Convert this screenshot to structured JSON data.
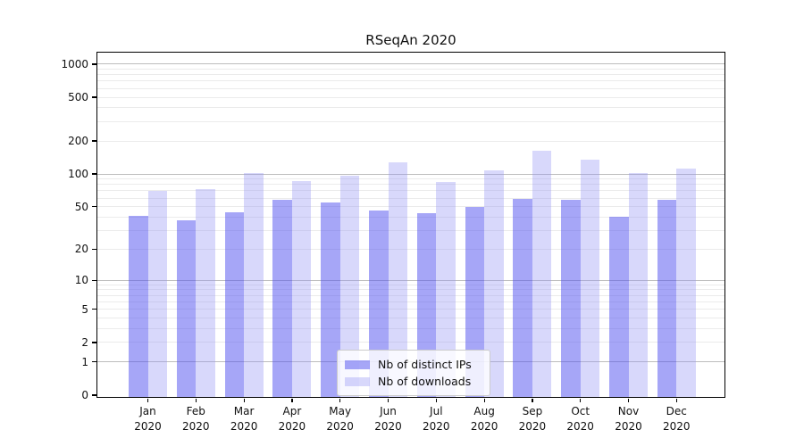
{
  "figure": {
    "background_color": "#ffffff"
  },
  "chart_data": {
    "type": "bar",
    "title": "RSeqAn 2020",
    "xlabel": "",
    "ylabel": "",
    "yscale": "log1p",
    "ylim": [
      0,
      1270
    ],
    "y_ticks": [
      0,
      1,
      2,
      5,
      10,
      20,
      50,
      100,
      200,
      500,
      1000
    ],
    "grid": true,
    "categories": [
      "Jan",
      "Feb",
      "Mar",
      "Apr",
      "May",
      "Jun",
      "Jul",
      "Aug",
      "Sep",
      "Oct",
      "Nov",
      "Dec"
    ],
    "category_year": "2020",
    "series": [
      {
        "name": "Nb of distinct IPs",
        "color": "rgba(85,85,240,0.52)",
        "color_on_white": "#aaaaf6",
        "values": [
          43,
          39,
          46,
          60,
          57,
          48,
          45,
          52,
          61,
          60,
          42,
          60
        ]
      },
      {
        "name": "Nb of downloads",
        "color": "rgba(146,146,244,0.36)",
        "color_on_white": "#d8d8fb",
        "values": [
          73,
          75,
          106,
          89,
          100,
          133,
          88,
          112,
          168,
          141,
          106,
          116
        ]
      }
    ],
    "legend_position": "inside-bottom-center",
    "style": {
      "major_grid_color": "#bdbdbd",
      "minor_grid_color": "#ebebeb",
      "spine_color": "#000000",
      "tick_color": "#000000"
    }
  }
}
